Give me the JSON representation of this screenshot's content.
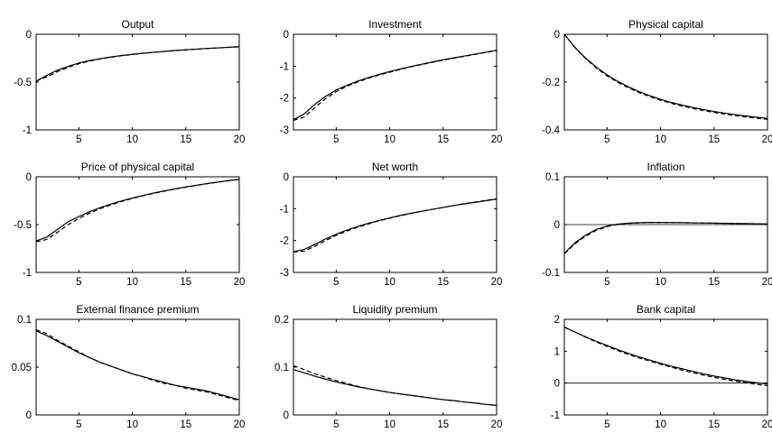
{
  "chart_data": [
    {
      "type": "line",
      "title": "Output",
      "xlim": [
        1,
        20
      ],
      "ylim": [
        -1,
        0
      ],
      "xticks": [
        5,
        10,
        15,
        20
      ],
      "xtick_labels": [
        "5",
        "10",
        "15",
        "20"
      ],
      "yticks": [
        -1,
        -0.5,
        0
      ],
      "ytick_labels": [
        "-1",
        "-0.5",
        "0"
      ],
      "zero_line": false,
      "x": [
        1,
        2,
        3,
        4,
        5,
        6,
        7,
        8,
        9,
        10,
        11,
        12,
        13,
        14,
        15,
        16,
        17,
        18,
        19,
        20
      ],
      "series": [
        {
          "style": "solid",
          "values": [
            -0.49,
            -0.43,
            -0.375,
            -0.335,
            -0.3,
            -0.275,
            -0.255,
            -0.237,
            -0.222,
            -0.21,
            -0.198,
            -0.188,
            -0.179,
            -0.17,
            -0.162,
            -0.155,
            -0.148,
            -0.142,
            -0.136,
            -0.13
          ]
        },
        {
          "style": "dashed",
          "values": [
            -0.49,
            -0.445,
            -0.39,
            -0.345,
            -0.308,
            -0.28,
            -0.258,
            -0.24,
            -0.224,
            -0.211,
            -0.199,
            -0.189,
            -0.18,
            -0.171,
            -0.163,
            -0.156,
            -0.149,
            -0.143,
            -0.137,
            -0.131
          ]
        }
      ]
    },
    {
      "type": "line",
      "title": "Investment",
      "xlim": [
        1,
        20
      ],
      "ylim": [
        -3,
        0
      ],
      "xticks": [
        5,
        10,
        15,
        20
      ],
      "xtick_labels": [
        "5",
        "10",
        "15",
        "20"
      ],
      "yticks": [
        -3,
        -2,
        -1,
        0
      ],
      "ytick_labels": [
        "-3",
        "-2",
        "-1",
        "0"
      ],
      "zero_line": false,
      "x": [
        1,
        2,
        3,
        4,
        5,
        6,
        7,
        8,
        9,
        10,
        11,
        12,
        13,
        14,
        15,
        16,
        17,
        18,
        19,
        20
      ],
      "series": [
        {
          "style": "solid",
          "values": [
            -2.68,
            -2.5,
            -2.2,
            -1.95,
            -1.75,
            -1.6,
            -1.47,
            -1.36,
            -1.26,
            -1.17,
            -1.09,
            -1.01,
            -0.94,
            -0.87,
            -0.8,
            -0.74,
            -0.68,
            -0.62,
            -0.56,
            -0.5
          ]
        },
        {
          "style": "dashed",
          "values": [
            -2.7,
            -2.6,
            -2.3,
            -2.02,
            -1.8,
            -1.63,
            -1.5,
            -1.38,
            -1.28,
            -1.19,
            -1.1,
            -1.02,
            -0.95,
            -0.88,
            -0.81,
            -0.75,
            -0.69,
            -0.63,
            -0.57,
            -0.51
          ]
        }
      ]
    },
    {
      "type": "line",
      "title": "Physical capital",
      "xlim": [
        1,
        20
      ],
      "ylim": [
        -0.4,
        0
      ],
      "xticks": [
        5,
        10,
        15,
        20
      ],
      "xtick_labels": [
        "5",
        "10",
        "15",
        "20"
      ],
      "yticks": [
        -0.4,
        -0.2,
        0
      ],
      "ytick_labels": [
        "-0.4",
        "-0.2",
        "0"
      ],
      "zero_line": false,
      "x": [
        1,
        2,
        3,
        4,
        5,
        6,
        7,
        8,
        9,
        10,
        11,
        12,
        13,
        14,
        15,
        16,
        17,
        18,
        19,
        20
      ],
      "series": [
        {
          "style": "solid",
          "values": [
            0,
            -0.055,
            -0.1,
            -0.138,
            -0.17,
            -0.197,
            -0.22,
            -0.24,
            -0.257,
            -0.272,
            -0.285,
            -0.296,
            -0.306,
            -0.315,
            -0.323,
            -0.33,
            -0.336,
            -0.342,
            -0.347,
            -0.352
          ]
        },
        {
          "style": "dashed",
          "values": [
            0,
            -0.056,
            -0.102,
            -0.141,
            -0.174,
            -0.201,
            -0.224,
            -0.244,
            -0.261,
            -0.276,
            -0.289,
            -0.3,
            -0.31,
            -0.319,
            -0.327,
            -0.334,
            -0.34,
            -0.346,
            -0.351,
            -0.356
          ]
        }
      ]
    },
    {
      "type": "line",
      "title": "Price of physical capital",
      "xlim": [
        1,
        20
      ],
      "ylim": [
        -1,
        0
      ],
      "xticks": [
        5,
        10,
        15,
        20
      ],
      "xtick_labels": [
        "5",
        "10",
        "15",
        "20"
      ],
      "yticks": [
        -1,
        -0.5,
        0
      ],
      "ytick_labels": [
        "-1",
        "-0.5",
        "0"
      ],
      "zero_line": false,
      "x": [
        1,
        2,
        3,
        4,
        5,
        6,
        7,
        8,
        9,
        10,
        11,
        12,
        13,
        14,
        15,
        16,
        17,
        18,
        19,
        20
      ],
      "series": [
        {
          "style": "solid",
          "values": [
            -0.67,
            -0.63,
            -0.55,
            -0.47,
            -0.415,
            -0.365,
            -0.322,
            -0.285,
            -0.252,
            -0.222,
            -0.195,
            -0.17,
            -0.147,
            -0.126,
            -0.106,
            -0.088,
            -0.071,
            -0.055,
            -0.04,
            -0.026
          ]
        },
        {
          "style": "dashed",
          "values": [
            -0.68,
            -0.655,
            -0.58,
            -0.5,
            -0.435,
            -0.38,
            -0.333,
            -0.293,
            -0.258,
            -0.227,
            -0.199,
            -0.173,
            -0.15,
            -0.128,
            -0.108,
            -0.09,
            -0.072,
            -0.056,
            -0.041,
            -0.027
          ]
        }
      ]
    },
    {
      "type": "line",
      "title": "Net worth",
      "xlim": [
        1,
        20
      ],
      "ylim": [
        -3,
        0
      ],
      "xticks": [
        5,
        10,
        15,
        20
      ],
      "xtick_labels": [
        "5",
        "10",
        "15",
        "20"
      ],
      "yticks": [
        -3,
        -2,
        -1,
        0
      ],
      "ytick_labels": [
        "-3",
        "-2",
        "-1",
        "0"
      ],
      "zero_line": false,
      "x": [
        1,
        2,
        3,
        4,
        5,
        6,
        7,
        8,
        9,
        10,
        11,
        12,
        13,
        14,
        15,
        16,
        17,
        18,
        19,
        20
      ],
      "series": [
        {
          "style": "solid",
          "values": [
            -2.35,
            -2.28,
            -2.12,
            -1.95,
            -1.8,
            -1.67,
            -1.56,
            -1.46,
            -1.37,
            -1.29,
            -1.21,
            -1.14,
            -1.08,
            -1.02,
            -0.96,
            -0.9,
            -0.85,
            -0.8,
            -0.75,
            -0.7
          ]
        },
        {
          "style": "dashed",
          "values": [
            -2.36,
            -2.33,
            -2.18,
            -2.0,
            -1.84,
            -1.7,
            -1.58,
            -1.48,
            -1.38,
            -1.3,
            -1.22,
            -1.15,
            -1.08,
            -1.02,
            -0.96,
            -0.9,
            -0.84,
            -0.79,
            -0.74,
            -0.69
          ]
        }
      ]
    },
    {
      "type": "line",
      "title": "Inflation",
      "xlim": [
        1,
        20
      ],
      "ylim": [
        -0.1,
        0.1
      ],
      "xticks": [
        5,
        10,
        15,
        20
      ],
      "xtick_labels": [
        "5",
        "10",
        "15",
        "20"
      ],
      "yticks": [
        -0.1,
        0,
        0.1
      ],
      "ytick_labels": [
        "-0.1",
        "0",
        "0.1"
      ],
      "zero_line": true,
      "x": [
        1,
        2,
        3,
        4,
        5,
        6,
        7,
        8,
        9,
        10,
        11,
        12,
        13,
        14,
        15,
        16,
        17,
        18,
        19,
        20
      ],
      "series": [
        {
          "style": "solid",
          "values": [
            -0.06,
            -0.038,
            -0.022,
            -0.01,
            -0.003,
            0.001,
            0.003,
            0.004,
            0.0045,
            0.0045,
            0.0043,
            0.004,
            0.0037,
            0.0034,
            0.003,
            0.0027,
            0.0024,
            0.0021,
            0.0018,
            0.0015
          ]
        },
        {
          "style": "dashed",
          "values": [
            -0.061,
            -0.04,
            -0.024,
            -0.012,
            -0.004,
            0.0005,
            0.0025,
            0.0036,
            0.0041,
            0.0042,
            0.0041,
            0.0039,
            0.0036,
            0.0033,
            0.0029,
            0.0026,
            0.0023,
            0.002,
            0.0017,
            0.0014
          ]
        }
      ]
    },
    {
      "type": "line",
      "title": "External finance premium",
      "xlim": [
        1,
        20
      ],
      "ylim": [
        0,
        0.1
      ],
      "xticks": [
        5,
        10,
        15,
        20
      ],
      "xtick_labels": [
        "5",
        "10",
        "15",
        "20"
      ],
      "yticks": [
        0,
        0.05,
        0.1
      ],
      "ytick_labels": [
        "0",
        "0.05",
        "0.1"
      ],
      "zero_line": false,
      "x": [
        1,
        2,
        3,
        4,
        5,
        6,
        7,
        8,
        9,
        10,
        11,
        12,
        13,
        14,
        15,
        16,
        17,
        18,
        19,
        20
      ],
      "series": [
        {
          "style": "solid",
          "values": [
            0.088,
            0.083,
            0.077,
            0.071,
            0.065,
            0.06,
            0.055,
            0.051,
            0.047,
            0.043,
            0.04,
            0.037,
            0.034,
            0.031,
            0.029,
            0.027,
            0.025,
            0.022,
            0.019,
            0.016
          ]
        },
        {
          "style": "dashed",
          "values": [
            0.089,
            0.085,
            0.078,
            0.072,
            0.066,
            0.06,
            0.055,
            0.051,
            0.047,
            0.043,
            0.04,
            0.036,
            0.033,
            0.031,
            0.028,
            0.026,
            0.024,
            0.021,
            0.018,
            0.015
          ]
        }
      ]
    },
    {
      "type": "line",
      "title": "Liquidity premium",
      "xlim": [
        1,
        20
      ],
      "ylim": [
        0,
        0.2
      ],
      "xticks": [
        5,
        10,
        15,
        20
      ],
      "xtick_labels": [
        "5",
        "10",
        "15",
        "20"
      ],
      "yticks": [
        0,
        0.1,
        0.2
      ],
      "ytick_labels": [
        "0",
        "0.1",
        "0.2"
      ],
      "zero_line": false,
      "x": [
        1,
        2,
        3,
        4,
        5,
        6,
        7,
        8,
        9,
        10,
        11,
        12,
        13,
        14,
        15,
        16,
        17,
        18,
        19,
        20
      ],
      "series": [
        {
          "style": "solid",
          "values": [
            0.095,
            0.088,
            0.081,
            0.075,
            0.069,
            0.064,
            0.059,
            0.055,
            0.051,
            0.047,
            0.044,
            0.041,
            0.038,
            0.035,
            0.032,
            0.03,
            0.027,
            0.025,
            0.022,
            0.02
          ]
        },
        {
          "style": "dashed",
          "values": [
            0.103,
            0.095,
            0.086,
            0.079,
            0.072,
            0.066,
            0.06,
            0.055,
            0.051,
            0.047,
            0.044,
            0.041,
            0.038,
            0.035,
            0.032,
            0.03,
            0.027,
            0.025,
            0.022,
            0.02
          ]
        }
      ]
    },
    {
      "type": "line",
      "title": "Bank capital",
      "xlim": [
        1,
        20
      ],
      "ylim": [
        -1,
        2
      ],
      "xticks": [
        5,
        10,
        15,
        20
      ],
      "xtick_labels": [
        "5",
        "10",
        "15",
        "20"
      ],
      "yticks": [
        -1,
        0,
        1,
        2
      ],
      "ytick_labels": [
        "-1",
        "0",
        "1",
        "2"
      ],
      "zero_line": true,
      "x": [
        1,
        2,
        3,
        4,
        5,
        6,
        7,
        8,
        9,
        10,
        11,
        12,
        13,
        14,
        15,
        16,
        17,
        18,
        19,
        20
      ],
      "series": [
        {
          "style": "solid",
          "values": [
            1.75,
            1.6,
            1.45,
            1.31,
            1.18,
            1.05,
            0.93,
            0.82,
            0.72,
            0.62,
            0.53,
            0.45,
            0.37,
            0.29,
            0.22,
            0.16,
            0.1,
            0.05,
            0.01,
            -0.03
          ]
        },
        {
          "style": "dashed",
          "values": [
            1.76,
            1.6,
            1.44,
            1.29,
            1.15,
            1.02,
            0.9,
            0.79,
            0.69,
            0.59,
            0.5,
            0.41,
            0.33,
            0.25,
            0.18,
            0.12,
            0.06,
            0.01,
            -0.04,
            -0.08
          ]
        }
      ]
    }
  ]
}
